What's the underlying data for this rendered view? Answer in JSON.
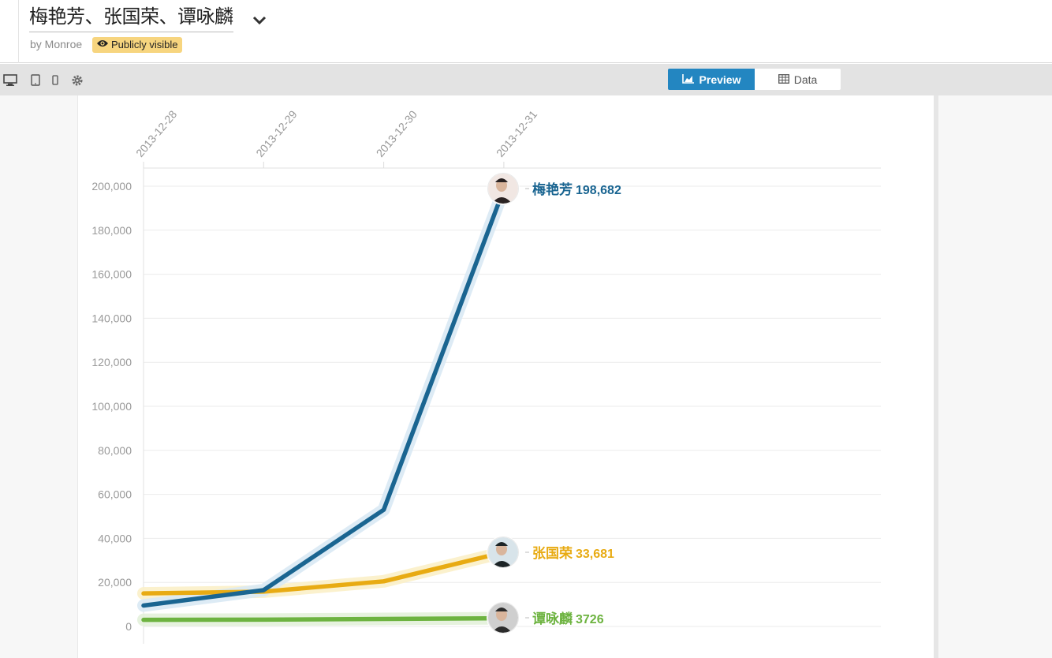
{
  "header": {
    "title": "梅艳芳、张国荣、谭咏麟",
    "byline": "by Monroe",
    "visibility": "Publicly visible"
  },
  "toolbar": {
    "icons": [
      "desktop-icon",
      "tablet-icon",
      "phone-icon",
      "gear-icon"
    ],
    "preview_label": "Preview",
    "data_label": "Data"
  },
  "colors": {
    "accent": "#2386c1",
    "badge": "#f7d57f"
  },
  "chart_data": {
    "type": "line",
    "x": [
      "2013-12-28",
      "2013-12-29",
      "2013-12-30",
      "2013-12-31"
    ],
    "ylim": [
      0,
      200000
    ],
    "yticks": [
      0,
      20000,
      40000,
      60000,
      80000,
      100000,
      120000,
      140000,
      160000,
      180000,
      200000
    ],
    "ytick_labels": [
      "0",
      "20,000",
      "40,000",
      "60,000",
      "80,000",
      "100,000",
      "120,000",
      "140,000",
      "160,000",
      "180,000",
      "200,000"
    ],
    "grid": true,
    "series": [
      {
        "name": "梅艳芳",
        "values": [
          9500,
          16500,
          53000,
          198682
        ],
        "end_label": "198,682",
        "color": "#1a6591",
        "glow": "#d9e9f4"
      },
      {
        "name": "张国荣",
        "values": [
          15000,
          15800,
          20500,
          33681
        ],
        "end_label": "33,681",
        "color": "#e8ab13",
        "glow": "#fbf0c8"
      },
      {
        "name": "谭咏麟",
        "values": [
          3000,
          3100,
          3400,
          3726
        ],
        "end_label": "3726",
        "color": "#6db340",
        "glow": "#e3f1da"
      }
    ]
  }
}
